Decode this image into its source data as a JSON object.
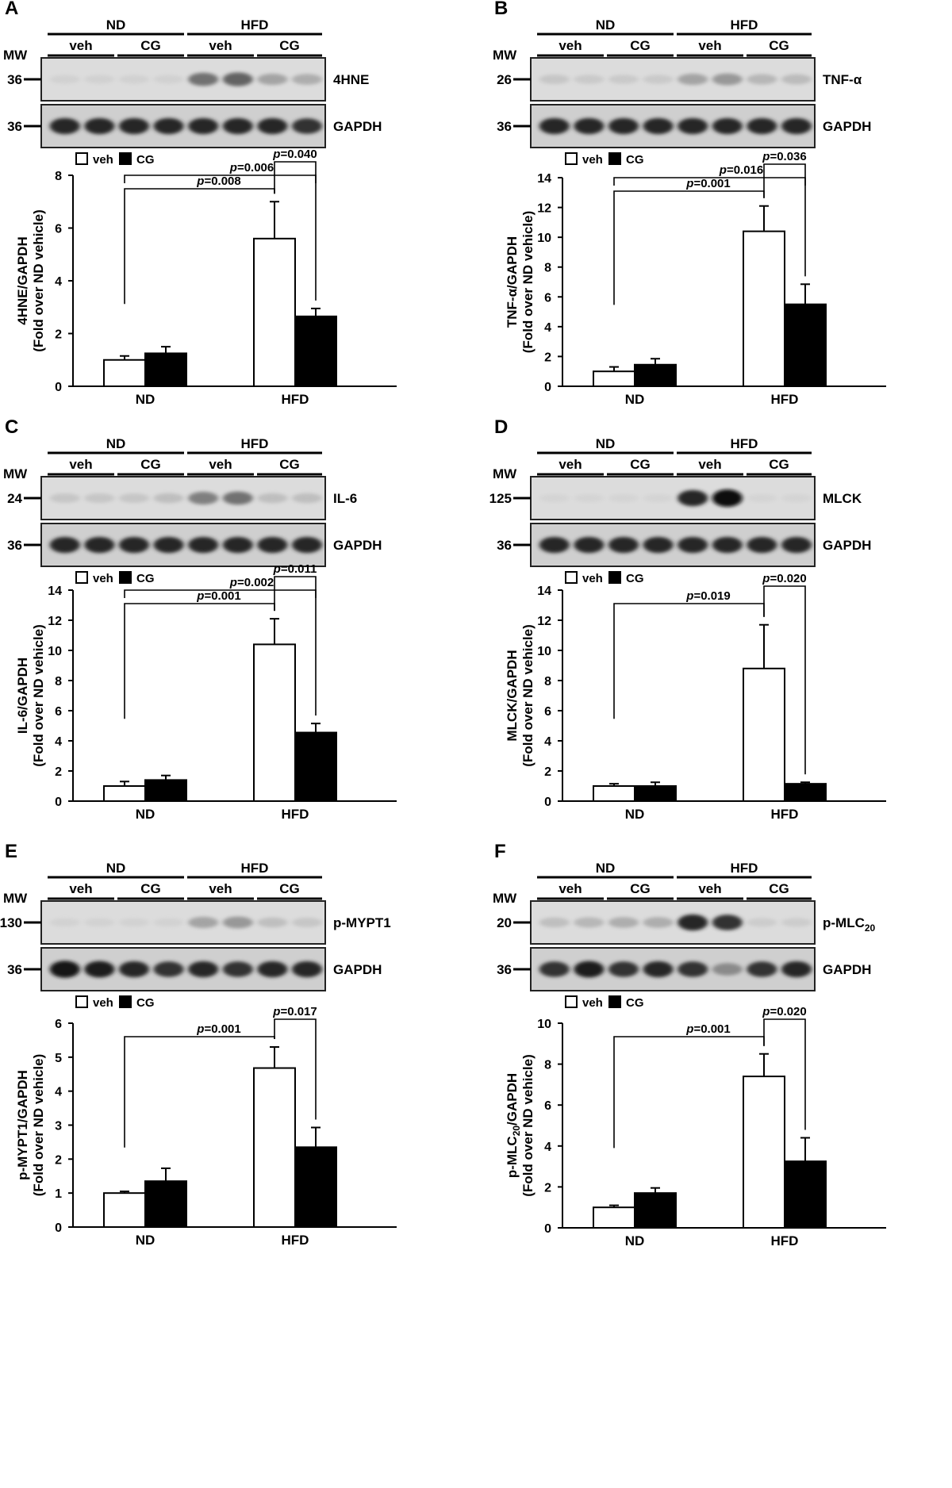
{
  "panels": [
    {
      "letter": "A",
      "groups": [
        "ND",
        "HFD"
      ],
      "subgroups": [
        "veh",
        "CG",
        "veh",
        "CG"
      ],
      "mw_title": "MW",
      "blots": [
        {
          "mw": "36",
          "label": "4HNE",
          "bands": [
            0.06,
            0.06,
            0.06,
            0.06,
            0.55,
            0.6,
            0.35,
            0.3
          ]
        },
        {
          "mw": "36",
          "label": "GAPDH",
          "bands": [
            0.85,
            0.85,
            0.85,
            0.85,
            0.85,
            0.85,
            0.85,
            0.8
          ]
        }
      ],
      "legend": {
        "veh": "veh",
        "cg": "CG"
      },
      "chart_data": {
        "type": "bar",
        "categories": [
          "ND",
          "HFD"
        ],
        "series": [
          {
            "name": "veh",
            "values": [
              1.0,
              5.6
            ],
            "errors": [
              0.15,
              1.4
            ]
          },
          {
            "name": "CG",
            "values": [
              1.25,
              2.65
            ],
            "errors": [
              0.25,
              0.3
            ]
          }
        ],
        "ylabel": [
          "4HNE/GAPDH",
          "(Fold over ND vehicle)"
        ],
        "ylim": [
          0,
          8
        ],
        "yticks": [
          "0",
          "2",
          "4",
          "6",
          "8"
        ],
        "brackets": [
          {
            "from": "ND-veh",
            "to": "HFD-veh",
            "p": "=0.008"
          },
          {
            "from": "ND-veh",
            "to": "HFD-CG",
            "p": "=0.006"
          },
          {
            "from": "HFD-veh",
            "to": "HFD-CG",
            "p": "=0.040"
          }
        ]
      }
    },
    {
      "letter": "B",
      "groups": [
        "ND",
        "HFD"
      ],
      "subgroups": [
        "veh",
        "CG",
        "veh",
        "CG"
      ],
      "mw_title": "MW",
      "blots": [
        {
          "mw": "26",
          "label": "TNF-α",
          "bands": [
            0.15,
            0.12,
            0.12,
            0.12,
            0.35,
            0.4,
            0.25,
            0.22
          ]
        },
        {
          "mw": "36",
          "label": "GAPDH",
          "bands": [
            0.85,
            0.85,
            0.85,
            0.85,
            0.85,
            0.85,
            0.85,
            0.85
          ]
        }
      ],
      "legend": {
        "veh": "veh",
        "cg": "CG"
      },
      "chart_data": {
        "type": "bar",
        "categories": [
          "ND",
          "HFD"
        ],
        "series": [
          {
            "name": "veh",
            "values": [
              1.0,
              10.4
            ],
            "errors": [
              0.3,
              1.7
            ]
          },
          {
            "name": "CG",
            "values": [
              1.45,
              5.5
            ],
            "errors": [
              0.4,
              1.35
            ]
          }
        ],
        "ylabel": [
          "TNF-α/GAPDH",
          "(Fold over ND vehicle)"
        ],
        "ylim": [
          0,
          14
        ],
        "yticks": [
          "0",
          "2",
          "4",
          "6",
          "8",
          "10",
          "12",
          "14"
        ],
        "brackets": [
          {
            "from": "ND-veh",
            "to": "HFD-veh",
            "p": "=0.001"
          },
          {
            "from": "ND-veh",
            "to": "HFD-CG",
            "p": "=0.016"
          },
          {
            "from": "HFD-veh",
            "to": "HFD-CG",
            "p": "=0.036"
          }
        ]
      }
    },
    {
      "letter": "C",
      "groups": [
        "ND",
        "HFD"
      ],
      "subgroups": [
        "veh",
        "CG",
        "veh",
        "CG"
      ],
      "mw_title": "MW",
      "blots": [
        {
          "mw": "24",
          "label": "IL-6",
          "bands": [
            0.15,
            0.15,
            0.15,
            0.2,
            0.5,
            0.55,
            0.2,
            0.2
          ]
        },
        {
          "mw": "36",
          "label": "GAPDH",
          "bands": [
            0.85,
            0.85,
            0.85,
            0.85,
            0.85,
            0.85,
            0.85,
            0.85
          ]
        }
      ],
      "legend": {
        "veh": "veh",
        "cg": "CG"
      },
      "chart_data": {
        "type": "bar",
        "categories": [
          "ND",
          "HFD"
        ],
        "series": [
          {
            "name": "veh",
            "values": [
              1.0,
              10.4
            ],
            "errors": [
              0.3,
              1.7
            ]
          },
          {
            "name": "CG",
            "values": [
              1.4,
              4.55
            ],
            "errors": [
              0.3,
              0.6
            ]
          }
        ],
        "ylabel": [
          "IL-6/GAPDH",
          "(Fold over ND vehicle)"
        ],
        "ylim": [
          0,
          14
        ],
        "yticks": [
          "0",
          "2",
          "4",
          "6",
          "8",
          "10",
          "12",
          "14"
        ],
        "brackets": [
          {
            "from": "ND-veh",
            "to": "HFD-veh",
            "p": "=0.001"
          },
          {
            "from": "ND-veh",
            "to": "HFD-CG",
            "p": "=0.002"
          },
          {
            "from": "HFD-veh",
            "to": "HFD-CG",
            "p": "=0.011"
          }
        ]
      }
    },
    {
      "letter": "D",
      "groups": [
        "ND",
        "HFD"
      ],
      "subgroups": [
        "veh",
        "CG",
        "veh",
        "CG"
      ],
      "mw_title": "MW",
      "blots": [
        {
          "mw": "125",
          "label": "MLCK",
          "bands": [
            0.02,
            0.02,
            0.02,
            0.02,
            0.85,
            1.0,
            0.02,
            0.02
          ]
        },
        {
          "mw": "36",
          "label": "GAPDH",
          "bands": [
            0.85,
            0.85,
            0.85,
            0.85,
            0.85,
            0.85,
            0.85,
            0.85
          ]
        }
      ],
      "legend": {
        "veh": "veh",
        "cg": "CG"
      },
      "chart_data": {
        "type": "bar",
        "categories": [
          "ND",
          "HFD"
        ],
        "series": [
          {
            "name": "veh",
            "values": [
              1.0,
              8.8
            ],
            "errors": [
              0.15,
              2.9
            ]
          },
          {
            "name": "CG",
            "values": [
              1.0,
              1.15
            ],
            "errors": [
              0.25,
              0.1
            ]
          }
        ],
        "ylabel": [
          "MLCK/GAPDH",
          "(Fold over ND vehicle)"
        ],
        "ylim": [
          0,
          14
        ],
        "yticks": [
          "0",
          "2",
          "4",
          "6",
          "8",
          "10",
          "12",
          "14"
        ],
        "brackets": [
          {
            "from": "ND-veh",
            "to": "HFD-veh",
            "p": "=0.019"
          },
          {
            "from": "HFD-veh",
            "to": "HFD-CG",
            "p": "=0.020"
          }
        ]
      }
    },
    {
      "letter": "E",
      "groups": [
        "ND",
        "HFD"
      ],
      "subgroups": [
        "veh",
        "CG",
        "veh",
        "CG"
      ],
      "mw_title": "MW",
      "blots": [
        {
          "mw": "130",
          "label": "p-MYPT1",
          "bands": [
            0.05,
            0.05,
            0.05,
            0.05,
            0.35,
            0.4,
            0.2,
            0.15
          ]
        },
        {
          "mw": "36",
          "label": "GAPDH",
          "bands": [
            0.95,
            0.9,
            0.85,
            0.8,
            0.85,
            0.8,
            0.85,
            0.85
          ]
        }
      ],
      "legend": {
        "veh": "veh",
        "cg": "CG"
      },
      "chart_data": {
        "type": "bar",
        "categories": [
          "ND",
          "HFD"
        ],
        "series": [
          {
            "name": "veh",
            "values": [
              1.0,
              4.68
            ],
            "errors": [
              0.05,
              0.62
            ]
          },
          {
            "name": "CG",
            "values": [
              1.35,
              2.35
            ],
            "errors": [
              0.38,
              0.58
            ]
          }
        ],
        "ylabel": [
          "p-MYPT1/GAPDH",
          "(Fold over ND vehicle)"
        ],
        "ylim": [
          0,
          6
        ],
        "yticks": [
          "0",
          "1",
          "2",
          "3",
          "4",
          "5",
          "6"
        ],
        "brackets": [
          {
            "from": "ND-veh",
            "to": "HFD-veh",
            "p": "=0.001"
          },
          {
            "from": "HFD-veh",
            "to": "HFD-CG",
            "p": "=0.017"
          }
        ]
      }
    },
    {
      "letter": "F",
      "groups": [
        "ND",
        "HFD"
      ],
      "subgroups": [
        "veh",
        "CG",
        "veh",
        "CG"
      ],
      "mw_title": "MW",
      "blots": [
        {
          "mw": "20",
          "label": "p-MLC",
          "label_sub": "20",
          "bands": [
            0.2,
            0.25,
            0.3,
            0.3,
            0.85,
            0.8,
            0.1,
            0.1
          ]
        },
        {
          "mw": "36",
          "label": "GAPDH",
          "bands": [
            0.8,
            0.9,
            0.8,
            0.85,
            0.8,
            0.45,
            0.8,
            0.85
          ]
        }
      ],
      "legend": {
        "veh": "veh",
        "cg": "CG"
      },
      "chart_data": {
        "type": "bar",
        "categories": [
          "ND",
          "HFD"
        ],
        "series": [
          {
            "name": "veh",
            "values": [
              1.0,
              7.4
            ],
            "errors": [
              0.1,
              1.1
            ]
          },
          {
            "name": "CG",
            "values": [
              1.7,
              3.25
            ],
            "errors": [
              0.25,
              1.15
            ]
          }
        ],
        "ylabel": [
          "p-MLC",
          "20",
          "/GAPDH",
          "(Fold over ND vehicle)"
        ],
        "ylim": [
          0,
          10
        ],
        "yticks": [
          "0",
          "2",
          "4",
          "6",
          "8",
          "10"
        ],
        "brackets": [
          {
            "from": "ND-veh",
            "to": "HFD-veh",
            "p": "=0.001"
          },
          {
            "from": "HFD-veh",
            "to": "HFD-CG",
            "p": "=0.020"
          }
        ]
      }
    }
  ],
  "p_symbol": "p"
}
